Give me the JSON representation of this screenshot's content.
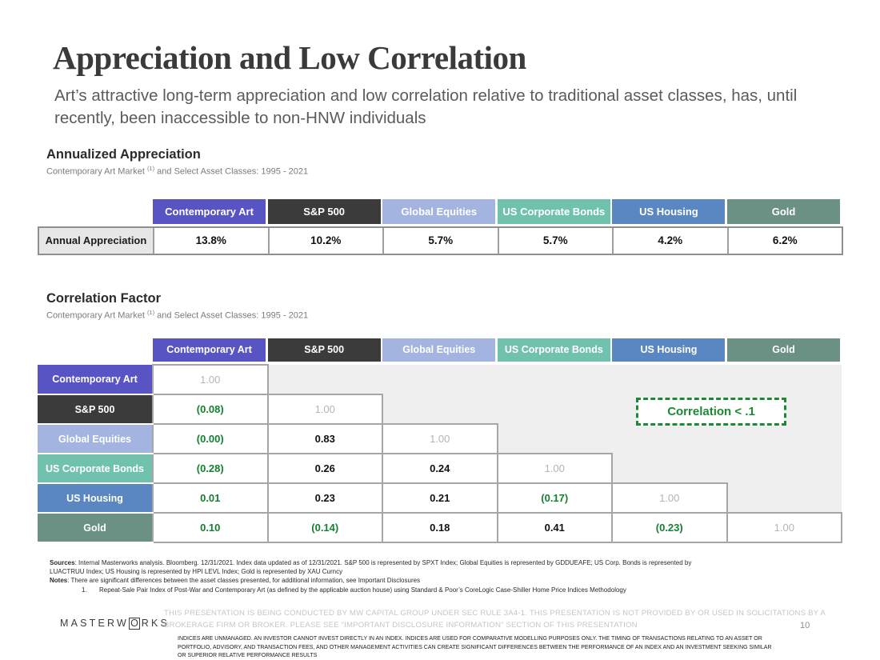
{
  "slide": {
    "title": "Appreciation and Low Correlation",
    "subtitle": "Art’s attractive long-term appreciation and low correlation relative to traditional asset classes, has, until recently, been inaccessible to non-HNW individuals",
    "page_number": "10"
  },
  "colors": {
    "header_colors": [
      "#5954c4",
      "#3b3b3b",
      "#a3b4e1",
      "#71c2ad",
      "#5a87c1",
      "#6a9183"
    ],
    "green_value": "#148030",
    "diagonal_gray": "#b4b4b4",
    "shaded_region": "#efefef",
    "callout_green": "#1b8a33"
  },
  "columns": [
    "Contemporary Art",
    "S&P 500",
    "Global Equities",
    "US Corporate Bonds",
    "US Housing",
    "Gold"
  ],
  "appreciation": {
    "heading": "Annualized Appreciation",
    "subheading": {
      "text": "Contemporary Art Market ",
      "sup": "(1)",
      "rest": " and Select Asset Classes: 1995 - 2021"
    },
    "row_label": "Annual Appreciation",
    "values": [
      "13.8%",
      "10.2%",
      "5.7%",
      "5.7%",
      "4.2%",
      "6.2%"
    ]
  },
  "correlation": {
    "heading": "Correlation Factor",
    "subheading": {
      "text": "Contemporary Art Market ",
      "sup": "(1)",
      "rest": " and Select Asset Classes: 1995 - 2021"
    },
    "callout": "Correlation < .1",
    "rows": [
      {
        "label": "Contemporary Art",
        "cells": [
          {
            "v": "1.00",
            "s": "d"
          }
        ]
      },
      {
        "label": "S&P 500",
        "cells": [
          {
            "v": "(0.08)",
            "s": "g"
          },
          {
            "v": "1.00",
            "s": "d"
          }
        ]
      },
      {
        "label": "Global Equities",
        "cells": [
          {
            "v": "(0.00)",
            "s": "g"
          },
          {
            "v": "0.83",
            "s": "b"
          },
          {
            "v": "1.00",
            "s": "d"
          }
        ]
      },
      {
        "label": "US Corporate Bonds",
        "cells": [
          {
            "v": "(0.28)",
            "s": "g"
          },
          {
            "v": "0.26",
            "s": "b"
          },
          {
            "v": "0.24",
            "s": "b"
          },
          {
            "v": "1.00",
            "s": "d"
          }
        ]
      },
      {
        "label": "US Housing",
        "cells": [
          {
            "v": "0.01",
            "s": "g"
          },
          {
            "v": "0.23",
            "s": "b"
          },
          {
            "v": "0.21",
            "s": "b"
          },
          {
            "v": "(0.17)",
            "s": "g"
          },
          {
            "v": "1.00",
            "s": "d"
          }
        ]
      },
      {
        "label": "Gold",
        "cells": [
          {
            "v": "0.10",
            "s": "g"
          },
          {
            "v": "(0.14)",
            "s": "g"
          },
          {
            "v": "0.18",
            "s": "b"
          },
          {
            "v": "0.41",
            "s": "b"
          },
          {
            "v": "(0.23)",
            "s": "g"
          },
          {
            "v": "1.00",
            "s": "d"
          }
        ]
      }
    ]
  },
  "footnotes": {
    "sources_label": "Sources",
    "sources_text1": ": Internal Masterworks analysis. Bloomberg. 12/31/2021. Index data updated as of 12/31/2021. S&P 500 is represented by SPXT Index; Global Equities is represented by GDDUEAFE; US Corp. Bonds is represented by",
    "sources_text2": "LUACTRUU Index; US Housing is represented by HPI LEVL Index; Gold is represented by XAU Curncy",
    "notes_label": "Notes",
    "notes_text": ": There are significant differences between the asset classes presented, for additional information, see Important Disclosures",
    "note1_num": "1.",
    "note1_text": "Repeat-Sale Pair Index of Post-War and Contemporary Art (as defined by the applicable auction house) using Standard & Poor’s CoreLogic Case-Shiller Home Price Indices Methodology"
  },
  "footer": {
    "logo_part1": "MASTERW",
    "logo_o": "O",
    "logo_part2": "RKS",
    "disclaimer_gray": "THIS PRESENTATION  IS BEING CONDUCTED BY MW CAPITAL GROUP UNDER SEC RULE 3A4-1. THIS PRESENTATION  IS NOT PROVIDED BY OR USED IN SOLICITATIONS BY A BROKERAGE FIRM OR BROKER. PLEASE SEE “IMPORTANT DISCLOSURE INFORMATION” SECTION OF THIS PRESENTATION",
    "disclaimer_black": "INDICES ARE UNMANAGED. AN INVESTOR CANNOT INVEST DIRECTLY IN AN INDEX. INDICES ARE USED FOR COMPARATIVE MODELLING PURPOSES ONLY. THE TIMING OF TRANSACTIONS RELATING TO AN ASSET OR PORTFOLIO, ADVISORY, AND TRANSACTION FEES, AND OTHER MANAGEMENT ACTIVITIES CAN CREATE SIGNIFICANT DIFFERENCES BETWEEN THE PERFORMANCE OF AN INDEX AND AN INVESTMENT SEEKING SIMILAR OR SUPERIOR RELATIVE PERFORMANCE RESULTS"
  }
}
